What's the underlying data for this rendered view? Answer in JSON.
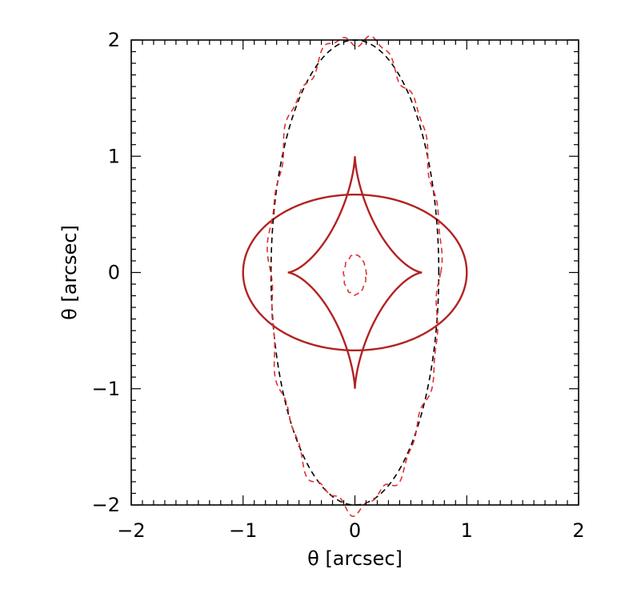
{
  "chart_data": {
    "type": "line",
    "title": "",
    "xlabel": "θ [arcsec]",
    "ylabel": "θ [arcsec]",
    "xlim": [
      -2,
      2
    ],
    "ylim": [
      -2,
      2
    ],
    "xticks": [
      {
        "value": -2,
        "label": "−2"
      },
      {
        "value": -1,
        "label": "−1"
      },
      {
        "value": 0,
        "label": "0"
      },
      {
        "value": 1,
        "label": "1"
      },
      {
        "value": 2,
        "label": "2"
      }
    ],
    "yticks": [
      {
        "value": -2,
        "label": "−2"
      },
      {
        "value": -1,
        "label": "−1"
      },
      {
        "value": 0,
        "label": "0"
      },
      {
        "value": 1,
        "label": "1"
      },
      {
        "value": 2,
        "label": "2"
      }
    ],
    "minor_tick_step": 0.1,
    "grid": false,
    "legend": "none",
    "colors": {
      "red": "#b22222",
      "dash_red": "#e03030",
      "black": "#000000"
    },
    "series": [
      {
        "shape": "ellipse",
        "center": [
          0,
          0
        ],
        "radii": [
          1.0,
          0.67
        ],
        "style": "solid",
        "color": "#b22222"
      },
      {
        "shape": "astroid",
        "center": [
          0,
          0
        ],
        "radii": [
          0.6,
          1.0
        ],
        "style": "solid",
        "color": "#b22222"
      },
      {
        "shape": "ellipse",
        "center": [
          0,
          0
        ],
        "radii": [
          0.75,
          2.0
        ],
        "style": "dashed",
        "color": "#000000"
      },
      {
        "shape": "ellipse",
        "center": [
          0,
          0
        ],
        "radii": [
          0.76,
          2.02
        ],
        "style": "dashed-wobbly",
        "color": "#e03030"
      },
      {
        "shape": "ellipse",
        "center": [
          0,
          -0.02
        ],
        "radii": [
          0.1,
          0.17
        ],
        "style": "dashed-wobbly",
        "color": "#e03030"
      }
    ]
  }
}
